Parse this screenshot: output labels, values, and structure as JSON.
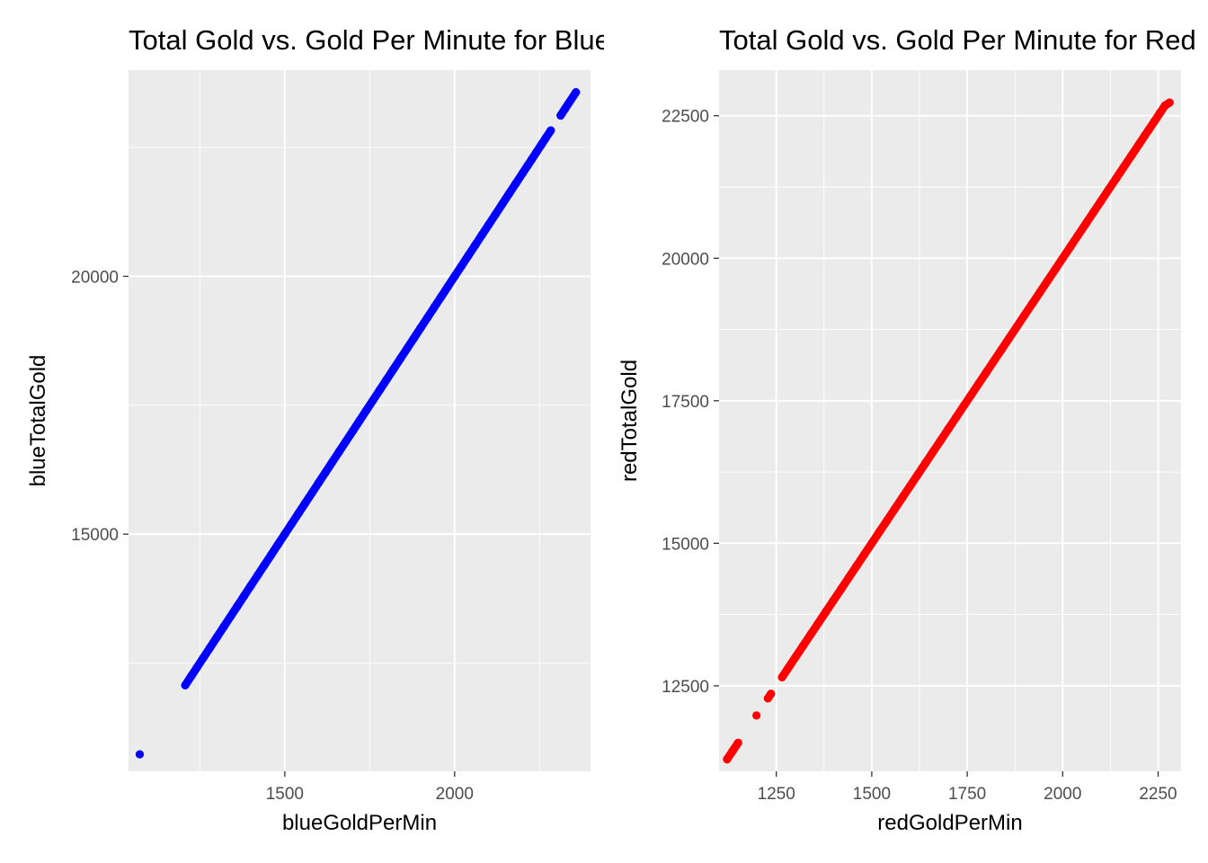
{
  "chart_data": [
    {
      "type": "scatter",
      "title": "Total Gold vs. Gold Per Minute for Blue",
      "xlabel": "blueGoldPerMin",
      "ylabel": "blueTotalGold",
      "xlim": [
        1040,
        2400
      ],
      "ylim": [
        10400,
        24000
      ],
      "x_major_ticks": [
        1500,
        2000
      ],
      "x_minor_ticks": [
        1250,
        1750,
        2250
      ],
      "y_major_ticks": [
        15000,
        20000
      ],
      "y_minor_ticks": [
        12500,
        17500,
        22500
      ],
      "grid": true,
      "color": "#0000ff",
      "x": [
        1073,
        1207,
        1225,
        1240,
        1260,
        1280,
        1300,
        1320,
        1340,
        1360,
        1380,
        1400,
        1420,
        1440,
        1460,
        1480,
        1500,
        1520,
        1540,
        1560,
        1580,
        1600,
        1620,
        1640,
        1660,
        1680,
        1700,
        1720,
        1740,
        1760,
        1780,
        1800,
        1820,
        1840,
        1860,
        1880,
        1900,
        1920,
        1940,
        1960,
        1980,
        2000,
        2020,
        2040,
        2060,
        2080,
        2100,
        2120,
        2140,
        2160,
        2180,
        2200,
        2215,
        2227,
        2240,
        2255,
        2268,
        2283,
        2312,
        2325,
        2335,
        2357
      ],
      "y": [
        10730,
        12070,
        12250,
        12400,
        12600,
        12800,
        13000,
        13200,
        13400,
        13600,
        13800,
        14000,
        14200,
        14400,
        14600,
        14800,
        15000,
        15200,
        15400,
        15600,
        15800,
        16000,
        16200,
        16400,
        16600,
        16800,
        17000,
        17200,
        17400,
        17600,
        17800,
        18000,
        18200,
        18400,
        18600,
        18800,
        19000,
        19200,
        19400,
        19600,
        19800,
        20000,
        20200,
        20400,
        20600,
        20800,
        21000,
        21200,
        21400,
        21600,
        21800,
        22000,
        22150,
        22270,
        22400,
        22550,
        22680,
        22830,
        23120,
        23250,
        23350,
        23570
      ]
    },
    {
      "type": "scatter",
      "title": "Total Gold vs. Gold Per Minute for Red",
      "xlabel": "redGoldPerMin",
      "ylabel": "redTotalGold",
      "xlim": [
        1100,
        2310
      ],
      "ylim": [
        11000,
        23300
      ],
      "x_major_ticks": [
        1250,
        1500,
        1750,
        2000,
        2250
      ],
      "x_minor_ticks": [
        1375,
        1625,
        1875,
        2125
      ],
      "y_major_ticks": [
        12500,
        15000,
        17500,
        20000,
        22500
      ],
      "y_minor_ticks": [
        13750,
        16250,
        18750,
        21250
      ],
      "grid": true,
      "color": "#ff0000",
      "x": [
        1121,
        1135,
        1150,
        1198,
        1228,
        1236,
        1265,
        1280,
        1300,
        1320,
        1340,
        1360,
        1380,
        1400,
        1420,
        1440,
        1460,
        1480,
        1500,
        1520,
        1540,
        1560,
        1580,
        1600,
        1620,
        1640,
        1660,
        1680,
        1700,
        1720,
        1740,
        1760,
        1780,
        1800,
        1820,
        1840,
        1860,
        1880,
        1900,
        1920,
        1940,
        1960,
        1980,
        2000,
        2020,
        2040,
        2060,
        2080,
        2100,
        2120,
        2140,
        2150,
        2160,
        2180,
        2200,
        2215,
        2225,
        2240,
        2255,
        2268,
        2280
      ],
      "y": [
        11210,
        11350,
        11500,
        11980,
        12280,
        12360,
        12650,
        12800,
        13000,
        13200,
        13400,
        13600,
        13800,
        14000,
        14200,
        14400,
        14600,
        14800,
        15000,
        15200,
        15400,
        15600,
        15800,
        16000,
        16200,
        16400,
        16600,
        16800,
        17000,
        17200,
        17400,
        17600,
        17800,
        18000,
        18200,
        18400,
        18600,
        18800,
        19000,
        19200,
        19400,
        19600,
        19800,
        20000,
        20200,
        20400,
        20600,
        20800,
        21000,
        21200,
        21400,
        21500,
        21600,
        21800,
        22000,
        22150,
        22250,
        22400,
        22550,
        22680,
        22730
      ]
    }
  ]
}
